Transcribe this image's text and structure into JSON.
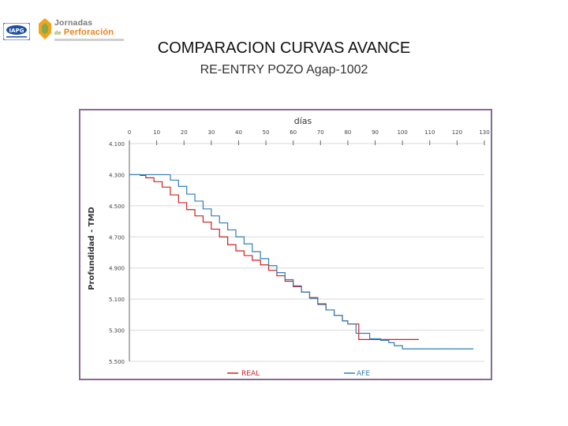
{
  "header": {
    "logo_iapg": "IAPG",
    "logo_jornadas_title": "Jornadas",
    "logo_jornadas_de": "de",
    "logo_jornadas_sub": "Perforación"
  },
  "slide": {
    "title": "COMPARACION CURVAS AVANCE",
    "subtitle": "RE-ENTRY POZO Agap-1002"
  },
  "colors": {
    "real": "#cc2222",
    "afe": "#2f7fb8",
    "frame": "#8a6a9a",
    "grid": "#d9d9d9"
  },
  "chart_data": {
    "type": "line",
    "xlabel": "días",
    "ylabel": "Profundidad - TMD",
    "xlim": [
      0,
      130
    ],
    "ylim": [
      4100,
      5500
    ],
    "x_ticks": [
      "0",
      "10",
      "20",
      "30",
      "40",
      "50",
      "60",
      "70",
      "80",
      "90",
      "100",
      "110",
      "120",
      "130"
    ],
    "y_ticks": [
      "4.100",
      "4.300",
      "4.500",
      "4.700",
      "4.900",
      "5.100",
      "5.300",
      "5.500"
    ],
    "x_tick_values": [
      0,
      10,
      20,
      30,
      40,
      50,
      60,
      70,
      80,
      90,
      100,
      110,
      120,
      130
    ],
    "y_tick_values": [
      4100,
      4300,
      4500,
      4700,
      4900,
      5100,
      5300,
      5500
    ],
    "grid": "horizontal",
    "legend": "bottom",
    "series": [
      {
        "name": "REAL",
        "x": [
          0,
          4,
          6,
          9,
          12,
          15,
          18,
          21,
          24,
          27,
          30,
          33,
          36,
          39,
          42,
          45,
          48,
          51,
          54,
          57,
          60,
          63,
          66,
          69,
          72,
          75,
          78,
          80,
          84,
          90,
          95,
          100,
          106
        ],
        "y": [
          4300,
          4305,
          4320,
          4345,
          4380,
          4430,
          4480,
          4525,
          4565,
          4605,
          4650,
          4700,
          4750,
          4790,
          4820,
          4850,
          4880,
          4915,
          4950,
          4985,
          5020,
          5055,
          5090,
          5130,
          5170,
          5205,
          5240,
          5260,
          5360,
          5360,
          5360,
          5360,
          5360
        ]
      },
      {
        "name": "AFE",
        "x": [
          0,
          6,
          12,
          15,
          18,
          21,
          24,
          27,
          30,
          33,
          36,
          39,
          42,
          45,
          48,
          51,
          54,
          57,
          60,
          63,
          66,
          69,
          72,
          75,
          78,
          80,
          83,
          88,
          92,
          95,
          97,
          100,
          105,
          110,
          120,
          126
        ],
        "y": [
          4300,
          4300,
          4300,
          4335,
          4375,
          4425,
          4470,
          4520,
          4565,
          4610,
          4655,
          4700,
          4745,
          4795,
          4840,
          4885,
          4930,
          4975,
          5015,
          5055,
          5095,
          5135,
          5170,
          5205,
          5240,
          5260,
          5320,
          5355,
          5365,
          5380,
          5400,
          5420,
          5420,
          5420,
          5420,
          5420
        ]
      }
    ]
  }
}
